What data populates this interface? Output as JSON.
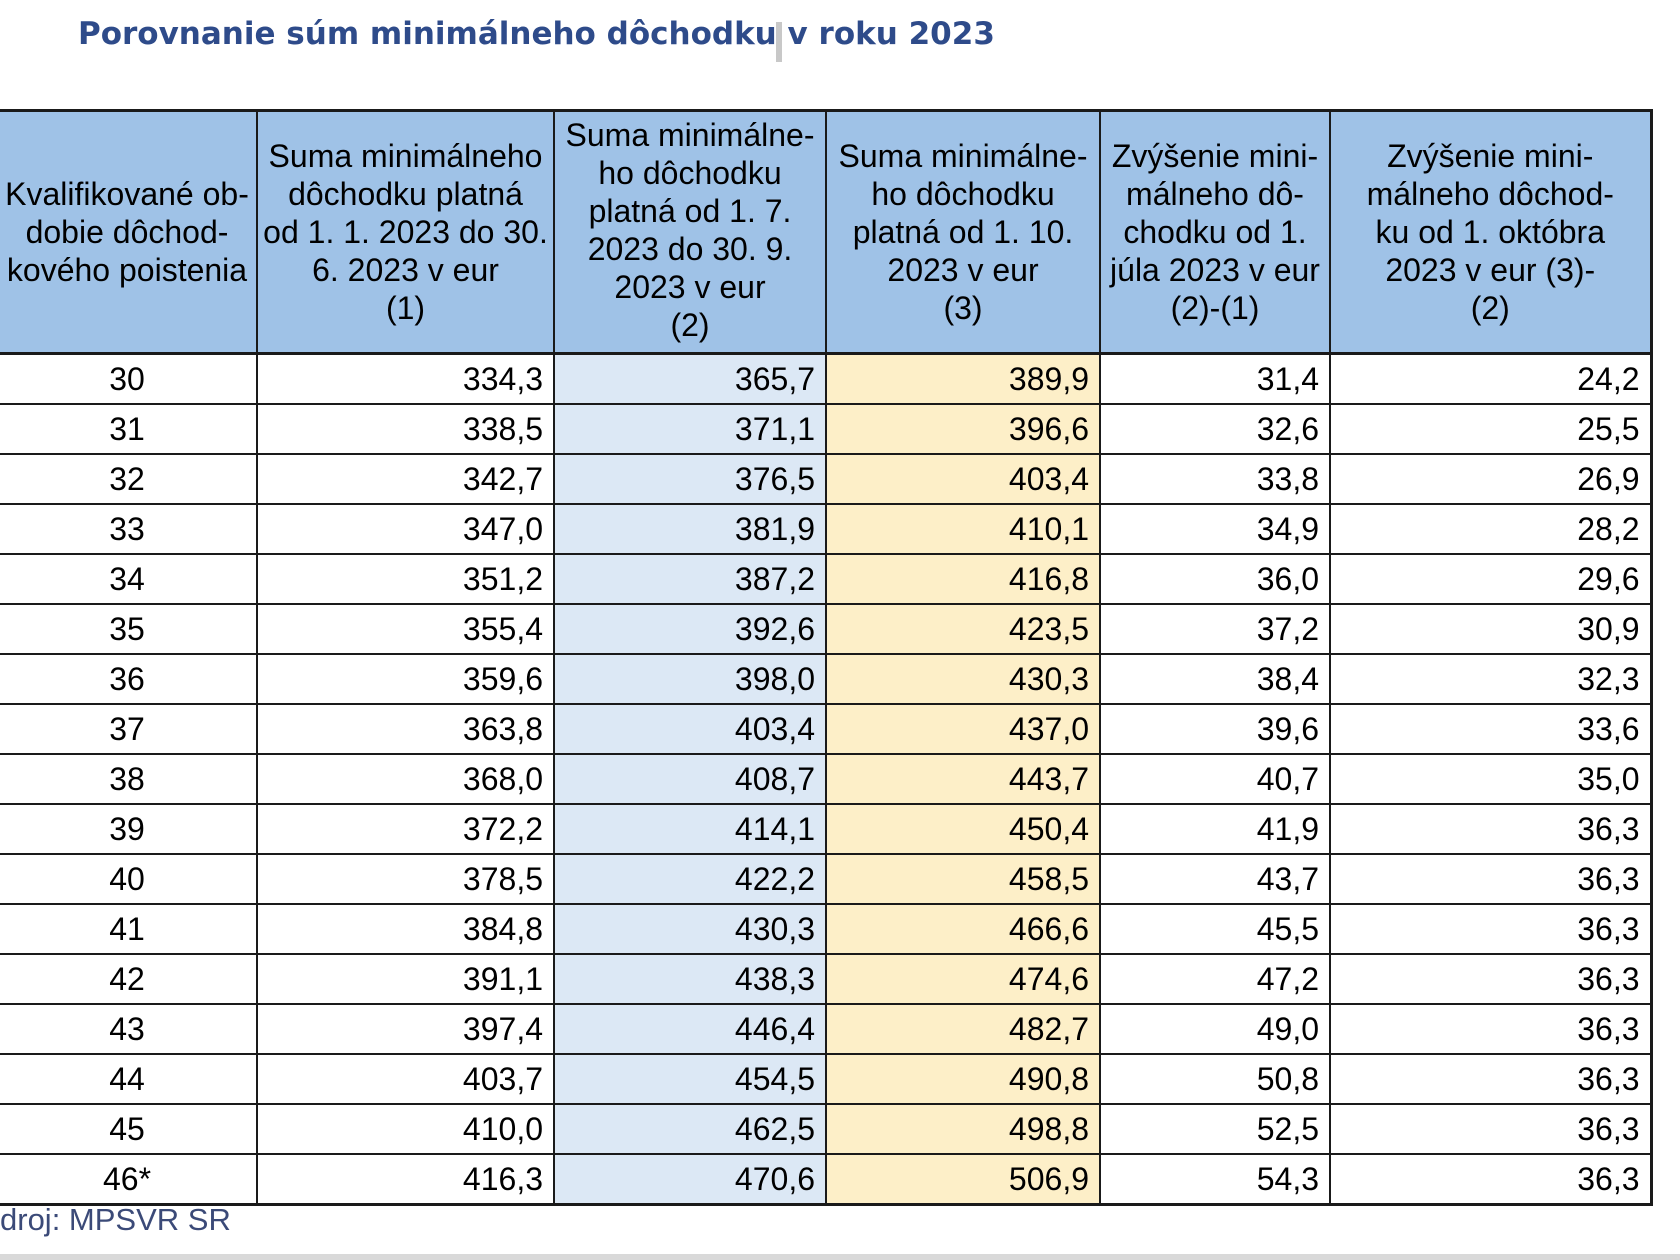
{
  "title": "Porovnanie súm minimálneho dôchodku v roku 2023",
  "table": {
    "headers": [
      "Kvalifikované ob-\ndobie dôchod-\nkového poistenia",
      "Suma minimálneho\ndôchodku platná\nod 1. 1. 2023 do 30.\n6. 2023 v eur\n(1)",
      "Suma minimálne-\nho dôchodku\nplatná od 1. 7.\n2023 do 30. 9.\n2023 v eur\n(2)",
      "Suma minimálne-\nho dôchodku\nplatná od 1. 10.\n2023 v eur\n(3)",
      "Zvýšenie mini-\nmálneho dô-\nchodku od 1.\njúla 2023 v eur\n(2)-(1)",
      "Zvýšenie mini-\nmálneho dôchod-\nku od 1. októbra\n2023 v eur     (3)-\n(2)"
    ],
    "rows": [
      [
        "30",
        "334,3",
        "365,7",
        "389,9",
        "31,4",
        "24,2"
      ],
      [
        "31",
        "338,5",
        "371,1",
        "396,6",
        "32,6",
        "25,5"
      ],
      [
        "32",
        "342,7",
        "376,5",
        "403,4",
        "33,8",
        "26,9"
      ],
      [
        "33",
        "347,0",
        "381,9",
        "410,1",
        "34,9",
        "28,2"
      ],
      [
        "34",
        "351,2",
        "387,2",
        "416,8",
        "36,0",
        "29,6"
      ],
      [
        "35",
        "355,4",
        "392,6",
        "423,5",
        "37,2",
        "30,9"
      ],
      [
        "36",
        "359,6",
        "398,0",
        "430,3",
        "38,4",
        "32,3"
      ],
      [
        "37",
        "363,8",
        "403,4",
        "437,0",
        "39,6",
        "33,6"
      ],
      [
        "38",
        "368,0",
        "408,7",
        "443,7",
        "40,7",
        "35,0"
      ],
      [
        "39",
        "372,2",
        "414,1",
        "450,4",
        "41,9",
        "36,3"
      ],
      [
        "40",
        "378,5",
        "422,2",
        "458,5",
        "43,7",
        "36,3"
      ],
      [
        "41",
        "384,8",
        "430,3",
        "466,6",
        "45,5",
        "36,3"
      ],
      [
        "42",
        "391,1",
        "438,3",
        "474,6",
        "47,2",
        "36,3"
      ],
      [
        "43",
        "397,4",
        "446,4",
        "482,7",
        "49,0",
        "36,3"
      ],
      [
        "44",
        "403,7",
        "454,5",
        "490,8",
        "50,8",
        "36,3"
      ],
      [
        "45",
        "410,0",
        "462,5",
        "498,8",
        "52,5",
        "36,3"
      ],
      [
        "46*",
        "416,3",
        "470,6",
        "506,9",
        "54,3",
        "36,3"
      ]
    ]
  },
  "source": "droj: MPSVR SR",
  "colors": {
    "title": "#2e4b8a",
    "header_bg": "#9fc2e7",
    "col2_bg": "#dce8f5",
    "col3_bg": "#fdefc8"
  }
}
